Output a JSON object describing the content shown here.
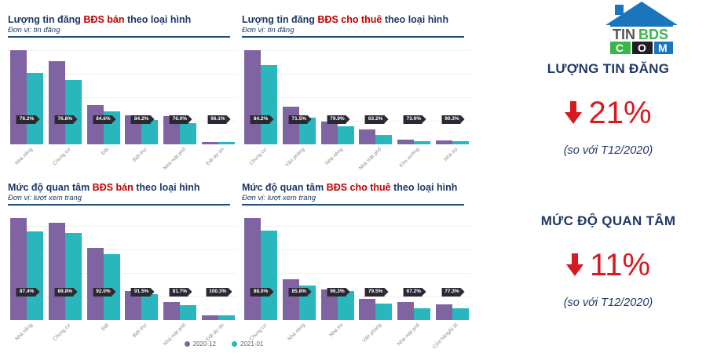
{
  "colors": {
    "purple": "#8064A2",
    "teal": "#29B6BD",
    "navy": "#1F3864",
    "title_red": "#C00000",
    "kpi_red": "#D71920",
    "badge_bg": "#2B2834",
    "logo_blue": "#1B75BC",
    "logo_green": "#3AB54A",
    "logo_black": "#231F20"
  },
  "legend": {
    "items": [
      {
        "label": "2020-12",
        "color": "#8064A2"
      },
      {
        "label": "2021-01",
        "color": "#29B6BD"
      }
    ]
  },
  "logo": {
    "word_dark": "TIN",
    "word_green": "BDS",
    "tiles": [
      "C",
      "O",
      "M"
    ]
  },
  "kpi": [
    {
      "title": "LƯỢNG TIN ĐĂNG",
      "arrow": "down",
      "value": "21%",
      "note": "(so với T12/2020)"
    },
    {
      "title": "MỨC ĐỘ QUAN TÂM",
      "arrow": "down",
      "value": "11%",
      "note": "(so với T12/2020)"
    }
  ],
  "chart_data": [
    {
      "type": "bar",
      "title_prefix": "Lượng tin đăng ",
      "title_red": "BĐS bán",
      "title_suffix": " theo loại hình",
      "subtitle": "Đơn vị: tin đăng",
      "categories": [
        "Nhà riêng",
        "Chung cư",
        "Đất",
        "Biệt thự",
        "Nhà mặt phố",
        "Đất dự án"
      ],
      "series": [
        {
          "name": "2020-12",
          "values": [
            100,
            89,
            42,
            31,
            30,
            2.6
          ]
        },
        {
          "name": "2021-01",
          "values": [
            76.2,
            68.4,
            35.5,
            26.1,
            22.8,
            2.5
          ]
        }
      ],
      "badges": [
        "76.2%",
        "76.8%",
        "84.6%",
        "84.2%",
        "76.0%",
        "96.1%"
      ],
      "legend_position": "bottom",
      "grid": true
    },
    {
      "type": "bar",
      "title_prefix": "Lượng tin đăng ",
      "title_red": "BĐS cho thuê",
      "title_suffix": " theo loại hình",
      "subtitle": "Đơn vị: tin đăng",
      "categories": [
        "Chung cư",
        "Văn phòng",
        "Nhà riêng",
        "Nhà mặt phố",
        "Kho xưởng",
        "Nhà trọ"
      ],
      "series": [
        {
          "name": "2020-12",
          "values": [
            100,
            40,
            24.5,
            16,
            5.2,
            4.4
          ]
        },
        {
          "name": "2021-01",
          "values": [
            84.2,
            28.6,
            19.6,
            10.1,
            3.8,
            4.0
          ]
        }
      ],
      "badges": [
        "84.2%",
        "71.5%",
        "79.9%",
        "63.2%",
        "73.9%",
        "90.3%"
      ],
      "legend_position": "bottom",
      "grid": true
    },
    {
      "type": "bar",
      "title_prefix": "Mức độ quan tâm ",
      "title_red": "BĐS bán",
      "title_suffix": " theo loại hình",
      "subtitle": "Đơn vị: lượt xem trang",
      "categories": [
        "Nhà riêng",
        "Chung cư",
        "Đất",
        "Biệt thự",
        "Nhà mặt phố",
        "Đất dự án"
      ],
      "series": [
        {
          "name": "2020-12",
          "values": [
            100,
            95.5,
            71,
            28.4,
            18,
            5.2
          ]
        },
        {
          "name": "2021-01",
          "values": [
            87.4,
            85.7,
            65.3,
            26.0,
            14.7,
            5.2
          ]
        }
      ],
      "badges": [
        "87.4%",
        "89.8%",
        "92.0%",
        "91.5%",
        "81.7%",
        "100.3%"
      ],
      "legend_position": "bottom",
      "grid": true
    },
    {
      "type": "bar",
      "title_prefix": "Mức độ quan tâm ",
      "title_red": "BĐS cho thuê",
      "title_suffix": " theo loại hình",
      "subtitle": "Đơn vị: lượt xem trang",
      "categories": [
        "Chung cư",
        "Nhà riêng",
        "Nhà trọ",
        "Văn phòng",
        "Nhà mặt phố",
        "Cửa hàng/ki ốt"
      ],
      "series": [
        {
          "name": "2020-12",
          "values": [
            100,
            40,
            30,
            21,
            18,
            15.5
          ]
        },
        {
          "name": "2021-01",
          "values": [
            88.0,
            34.3,
            28.9,
            16.7,
            12.1,
            12.0
          ]
        }
      ],
      "badges": [
        "88.0%",
        "85.8%",
        "96.3%",
        "79.5%",
        "67.2%",
        "77.3%"
      ],
      "legend_position": "bottom",
      "grid": true
    }
  ]
}
